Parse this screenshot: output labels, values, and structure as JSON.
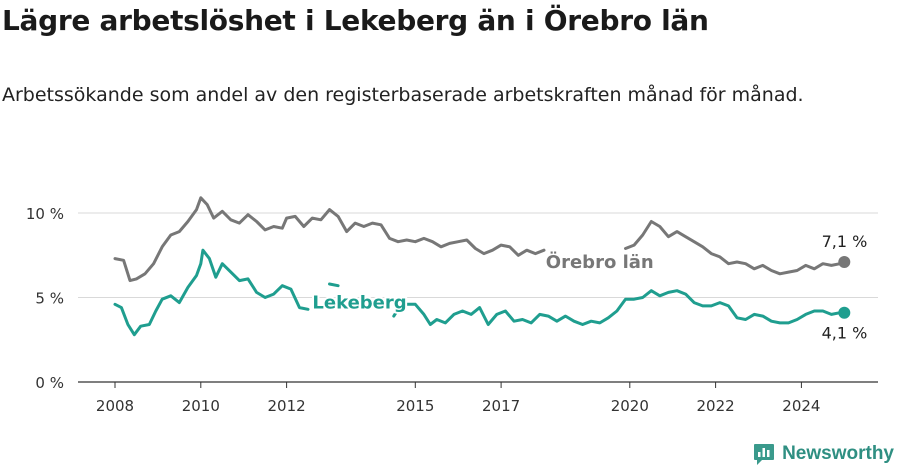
{
  "header": {
    "title": "Lägre arbetslöshet i Lekeberg än i Örebro län",
    "subtitle": "Arbetssökande som andel av den registerbaserade arbetskraften månad för månad."
  },
  "brand": {
    "name": "Newsworthy",
    "color": "#3a9a8c"
  },
  "chart_data": {
    "type": "line",
    "x_ticks": [
      2008,
      2010,
      2012,
      2015,
      2017,
      2020,
      2022,
      2024
    ],
    "xlim": [
      2007.6,
      2025.6
    ],
    "ylim": [
      0,
      12
    ],
    "y_ticks": [
      0,
      5,
      10
    ],
    "y_tick_labels": [
      "0 %",
      "5 %",
      "10 %"
    ],
    "grid": true,
    "series": [
      {
        "name": "Örebro län",
        "color": "#777777",
        "end_label": "7,1 %",
        "points": [
          [
            2008.0,
            7.3
          ],
          [
            2008.2,
            7.2
          ],
          [
            2008.35,
            6.0
          ],
          [
            2008.5,
            6.1
          ],
          [
            2008.7,
            6.4
          ],
          [
            2008.9,
            7.0
          ],
          [
            2009.1,
            8.0
          ],
          [
            2009.3,
            8.7
          ],
          [
            2009.5,
            8.9
          ],
          [
            2009.7,
            9.5
          ],
          [
            2009.9,
            10.2
          ],
          [
            2010.0,
            10.9
          ],
          [
            2010.15,
            10.5
          ],
          [
            2010.3,
            9.7
          ],
          [
            2010.5,
            10.1
          ],
          [
            2010.7,
            9.6
          ],
          [
            2010.9,
            9.4
          ],
          [
            2011.1,
            9.9
          ],
          [
            2011.3,
            9.5
          ],
          [
            2011.5,
            9.0
          ],
          [
            2011.7,
            9.2
          ],
          [
            2011.9,
            9.1
          ],
          [
            2012.0,
            9.7
          ],
          [
            2012.2,
            9.8
          ],
          [
            2012.4,
            9.2
          ],
          [
            2012.6,
            9.7
          ],
          [
            2012.8,
            9.6
          ],
          [
            2013.0,
            10.2
          ],
          [
            2013.2,
            9.8
          ],
          [
            2013.4,
            8.9
          ],
          [
            2013.6,
            9.4
          ],
          [
            2013.8,
            9.2
          ],
          [
            2014.0,
            9.4
          ],
          [
            2014.2,
            9.3
          ],
          [
            2014.4,
            8.5
          ],
          [
            2014.6,
            8.3
          ],
          [
            2014.8,
            8.4
          ],
          [
            2015.0,
            8.3
          ],
          [
            2015.2,
            8.5
          ],
          [
            2015.4,
            8.3
          ],
          [
            2015.6,
            8.0
          ],
          [
            2015.8,
            8.2
          ],
          [
            2016.0,
            8.3
          ],
          [
            2016.2,
            8.4
          ],
          [
            2016.4,
            7.9
          ],
          [
            2016.6,
            7.6
          ],
          [
            2016.8,
            7.8
          ],
          [
            2017.0,
            8.1
          ],
          [
            2017.2,
            8.0
          ],
          [
            2017.4,
            7.5
          ],
          [
            2017.6,
            7.8
          ],
          [
            2017.8,
            7.6
          ],
          [
            2018.0,
            7.8
          ],
          [
            null,
            null
          ],
          [
            2019.9,
            7.9
          ],
          [
            2020.1,
            8.1
          ],
          [
            2020.3,
            8.7
          ],
          [
            2020.5,
            9.5
          ],
          [
            2020.7,
            9.2
          ],
          [
            2020.9,
            8.6
          ],
          [
            2021.1,
            8.9
          ],
          [
            2021.3,
            8.6
          ],
          [
            2021.5,
            8.3
          ],
          [
            2021.7,
            8.0
          ],
          [
            2021.9,
            7.6
          ],
          [
            2022.1,
            7.4
          ],
          [
            2022.3,
            7.0
          ],
          [
            2022.5,
            7.1
          ],
          [
            2022.7,
            7.0
          ],
          [
            2022.9,
            6.7
          ],
          [
            2023.1,
            6.9
          ],
          [
            2023.3,
            6.6
          ],
          [
            2023.5,
            6.4
          ],
          [
            2023.7,
            6.5
          ],
          [
            2023.9,
            6.6
          ],
          [
            2024.1,
            6.9
          ],
          [
            2024.3,
            6.7
          ],
          [
            2024.5,
            7.0
          ],
          [
            2024.7,
            6.9
          ],
          [
            2024.9,
            7.0
          ],
          [
            2025.0,
            7.1
          ]
        ]
      },
      {
        "name": "Lekeberg",
        "color": "#1f9e8f",
        "end_label": "4,1 %",
        "points": [
          [
            2008.0,
            4.6
          ],
          [
            2008.15,
            4.4
          ],
          [
            2008.3,
            3.4
          ],
          [
            2008.45,
            2.8
          ],
          [
            2008.6,
            3.3
          ],
          [
            2008.8,
            3.4
          ],
          [
            2008.95,
            4.2
          ],
          [
            2009.1,
            4.9
          ],
          [
            2009.3,
            5.1
          ],
          [
            2009.5,
            4.7
          ],
          [
            2009.7,
            5.6
          ],
          [
            2009.9,
            6.3
          ],
          [
            2010.0,
            7.0
          ],
          [
            2010.05,
            7.8
          ],
          [
            2010.2,
            7.3
          ],
          [
            2010.35,
            6.2
          ],
          [
            2010.5,
            7.0
          ],
          [
            2010.7,
            6.5
          ],
          [
            2010.9,
            6.0
          ],
          [
            2011.1,
            6.1
          ],
          [
            2011.3,
            5.3
          ],
          [
            2011.5,
            5.0
          ],
          [
            2011.7,
            5.2
          ],
          [
            2011.9,
            5.7
          ],
          [
            2012.1,
            5.5
          ],
          [
            2012.3,
            4.4
          ],
          [
            2012.5,
            4.3
          ],
          [
            null,
            null
          ],
          [
            2013.0,
            5.8
          ],
          [
            2013.2,
            5.7
          ],
          [
            null,
            null
          ],
          [
            2014.5,
            3.9
          ],
          [
            2014.6,
            4.3
          ],
          [
            2014.8,
            4.6
          ],
          [
            2015.0,
            4.6
          ],
          [
            2015.2,
            4.0
          ],
          [
            2015.35,
            3.4
          ],
          [
            2015.5,
            3.7
          ],
          [
            2015.7,
            3.5
          ],
          [
            2015.9,
            4.0
          ],
          [
            2016.1,
            4.2
          ],
          [
            2016.3,
            4.0
          ],
          [
            2016.5,
            4.4
          ],
          [
            2016.7,
            3.4
          ],
          [
            2016.9,
            4.0
          ],
          [
            2017.1,
            4.2
          ],
          [
            2017.3,
            3.6
          ],
          [
            2017.5,
            3.7
          ],
          [
            2017.7,
            3.5
          ],
          [
            2017.9,
            4.0
          ],
          [
            2018.1,
            3.9
          ],
          [
            2018.3,
            3.6
          ],
          [
            2018.5,
            3.9
          ],
          [
            2018.7,
            3.6
          ],
          [
            2018.9,
            3.4
          ],
          [
            2019.1,
            3.6
          ],
          [
            2019.3,
            3.5
          ],
          [
            2019.5,
            3.8
          ],
          [
            2019.7,
            4.2
          ],
          [
            2019.9,
            4.9
          ],
          [
            2020.1,
            4.9
          ],
          [
            2020.3,
            5.0
          ],
          [
            2020.5,
            5.4
          ],
          [
            2020.7,
            5.1
          ],
          [
            2020.9,
            5.3
          ],
          [
            2021.1,
            5.4
          ],
          [
            2021.3,
            5.2
          ],
          [
            2021.5,
            4.7
          ],
          [
            2021.7,
            4.5
          ],
          [
            2021.9,
            4.5
          ],
          [
            2022.1,
            4.7
          ],
          [
            2022.3,
            4.5
          ],
          [
            2022.5,
            3.8
          ],
          [
            2022.7,
            3.7
          ],
          [
            2022.9,
            4.0
          ],
          [
            2023.1,
            3.9
          ],
          [
            2023.3,
            3.6
          ],
          [
            2023.5,
            3.5
          ],
          [
            2023.7,
            3.5
          ],
          [
            2023.9,
            3.7
          ],
          [
            2024.1,
            4.0
          ],
          [
            2024.3,
            4.2
          ],
          [
            2024.5,
            4.2
          ],
          [
            2024.7,
            4.0
          ],
          [
            2024.9,
            4.1
          ],
          [
            2025.0,
            4.1
          ]
        ]
      }
    ]
  }
}
